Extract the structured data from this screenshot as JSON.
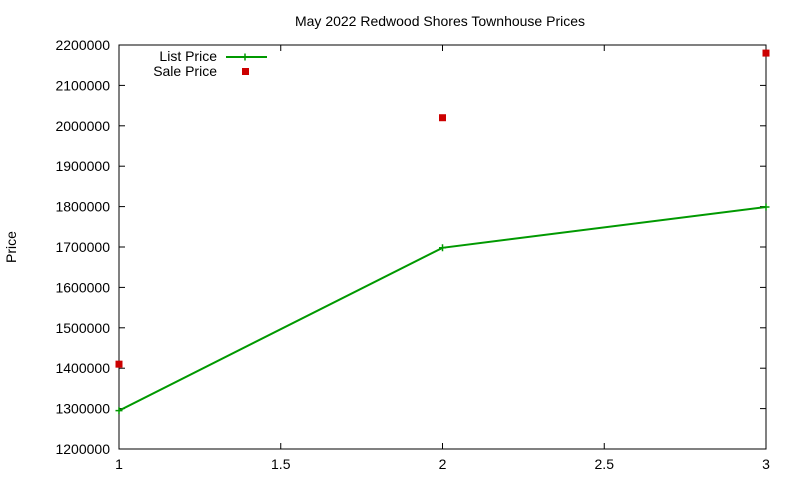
{
  "chart_data": {
    "type": "line",
    "title": "May 2022 Redwood Shores Townhouse Prices",
    "xlabel": "",
    "ylabel": "Price",
    "xlim": [
      1,
      3
    ],
    "ylim": [
      1200000,
      2200000
    ],
    "xticks": [
      "1",
      "1.5",
      "2",
      "2.5",
      "3"
    ],
    "yticks": [
      "1200000",
      "1300000",
      "1400000",
      "1500000",
      "1600000",
      "1700000",
      "1800000",
      "1900000",
      "2000000",
      "2100000",
      "2200000"
    ],
    "grid": false,
    "legend": "top-left",
    "series": [
      {
        "name": "List Price",
        "style": "linespoints",
        "color": "#009900",
        "x": [
          1,
          2,
          3
        ],
        "y": [
          1295000,
          1698000,
          1799000
        ]
      },
      {
        "name": "Sale Price",
        "style": "points",
        "color": "#cc0000",
        "x": [
          1,
          2,
          3
        ],
        "y": [
          1410000,
          2020000,
          2180000
        ]
      }
    ]
  }
}
